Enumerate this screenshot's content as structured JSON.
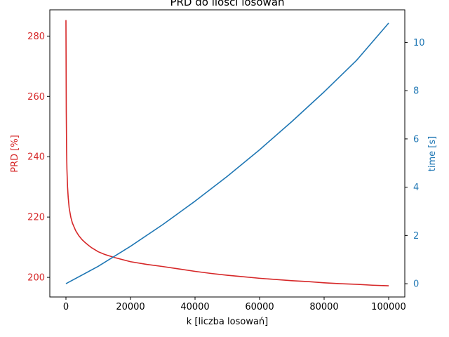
{
  "chart_data": {
    "type": "line",
    "title": "PRD do ilości losowań",
    "xlabel": "k [liczba losowań]",
    "ylabel_left": "PRD [%]",
    "ylabel_right": "time [s]",
    "xlim": [
      -5000,
      105000
    ],
    "ylim_left": [
      193.5,
      288.7
    ],
    "ylim_right": [
      -0.55,
      11.35
    ],
    "x_ticks": [
      0,
      20000,
      40000,
      60000,
      80000,
      100000
    ],
    "y_left_ticks": [
      200,
      220,
      240,
      260,
      280
    ],
    "y_right_ticks": [
      0,
      2,
      4,
      6,
      8,
      10
    ],
    "grid": false,
    "series": [
      {
        "axis": "left",
        "color": "#d62728",
        "x": [
          0,
          100,
          200,
          300,
          500,
          700,
          1000,
          1500,
          2000,
          3000,
          4000,
          5000,
          6000,
          7000,
          8000,
          10000,
          12000,
          15000,
          20000,
          25000,
          30000,
          35000,
          40000,
          45000,
          50000,
          55000,
          60000,
          65000,
          70000,
          75000,
          80000,
          85000,
          90000,
          95000,
          100000
        ],
        "values": [
          285.3,
          255.0,
          242.0,
          236.0,
          230.0,
          226.5,
          223.0,
          220.0,
          218.0,
          215.5,
          213.8,
          212.5,
          211.5,
          210.6,
          209.8,
          208.5,
          207.6,
          206.6,
          205.2,
          204.3,
          203.6,
          202.8,
          202.0,
          201.3,
          200.7,
          200.2,
          199.7,
          199.3,
          198.9,
          198.6,
          198.2,
          197.9,
          197.7,
          197.4,
          197.2
        ]
      },
      {
        "axis": "right",
        "color": "#1f77b4",
        "x": [
          0,
          10000,
          20000,
          30000,
          40000,
          50000,
          60000,
          70000,
          80000,
          90000,
          100000
        ],
        "values": [
          0.0,
          0.72,
          1.55,
          2.45,
          3.42,
          4.45,
          5.55,
          6.72,
          7.95,
          9.25,
          10.8
        ]
      }
    ]
  }
}
